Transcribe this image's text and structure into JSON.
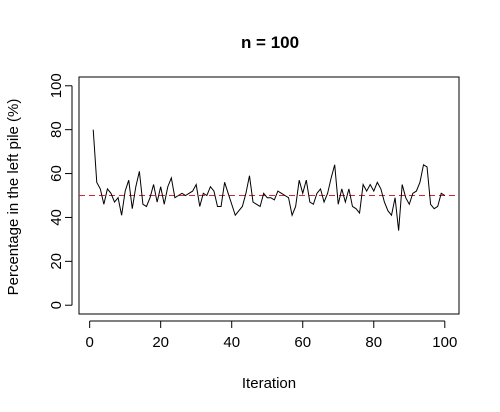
{
  "chart_data": {
    "type": "line",
    "title": "n = 100",
    "xlabel": "Iteration",
    "ylabel": "Percentage in the left pile (%)",
    "xlim": [
      -3,
      104
    ],
    "ylim": [
      -4,
      104
    ],
    "x_ticks": [
      0,
      20,
      40,
      60,
      80,
      100
    ],
    "y_ticks": [
      0,
      20,
      40,
      60,
      80,
      100
    ],
    "grid": false,
    "reference_line": {
      "y": 50,
      "color": "#d62728",
      "style": "dashed"
    },
    "series": [
      {
        "color": "#000000",
        "x": [
          1,
          2,
          3,
          4,
          5,
          6,
          7,
          8,
          9,
          10,
          11,
          12,
          13,
          14,
          15,
          16,
          17,
          18,
          19,
          20,
          21,
          22,
          23,
          24,
          25,
          26,
          27,
          28,
          29,
          30,
          31,
          32,
          33,
          34,
          35,
          36,
          37,
          38,
          39,
          40,
          41,
          42,
          43,
          44,
          45,
          46,
          47,
          48,
          49,
          50,
          51,
          52,
          53,
          54,
          55,
          56,
          57,
          58,
          59,
          60,
          61,
          62,
          63,
          64,
          65,
          66,
          67,
          68,
          69,
          70,
          71,
          72,
          73,
          74,
          75,
          76,
          77,
          78,
          79,
          80,
          81,
          82,
          83,
          84,
          85,
          86,
          87,
          88,
          89,
          90,
          91,
          92,
          93,
          94,
          95,
          96,
          97,
          98,
          99,
          100
        ],
        "values": [
          80,
          56,
          53,
          46,
          53,
          51,
          47,
          49,
          41,
          52,
          57,
          44,
          54,
          61,
          46,
          45,
          49,
          55,
          47,
          54,
          46,
          54,
          58,
          49,
          50,
          51,
          50,
          51,
          52,
          55,
          45,
          51,
          50,
          54,
          52,
          45,
          45,
          56,
          51,
          46,
          41,
          43,
          45,
          51,
          59,
          47,
          46,
          45,
          51,
          49,
          49,
          48,
          52,
          51,
          50,
          49,
          41,
          45,
          57,
          51,
          57,
          47,
          46,
          51,
          53,
          47,
          51,
          58,
          64,
          46,
          53,
          47,
          53,
          45,
          44,
          42,
          55,
          52,
          55,
          52,
          56,
          53,
          47,
          43,
          41,
          49,
          34,
          55,
          49,
          46,
          51,
          52,
          56,
          64,
          63,
          46,
          44,
          45,
          51,
          50
        ]
      }
    ]
  }
}
